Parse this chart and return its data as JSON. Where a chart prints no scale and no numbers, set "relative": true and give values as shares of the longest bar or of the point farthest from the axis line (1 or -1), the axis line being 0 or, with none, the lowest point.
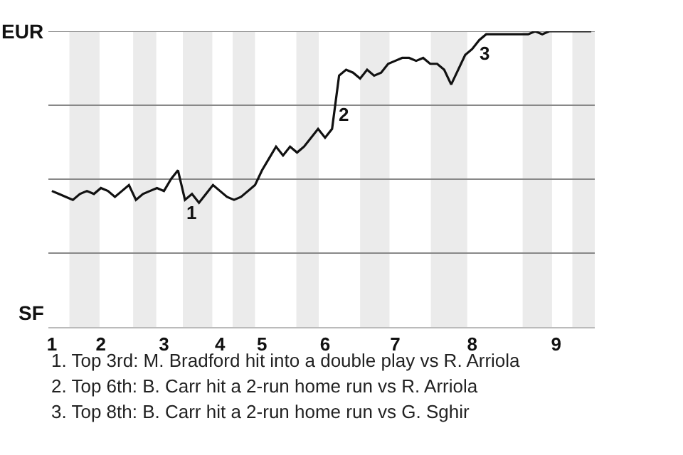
{
  "chart_data": {
    "type": "line",
    "relative": true,
    "categories": [
      "1",
      null,
      null,
      null,
      null,
      null,
      null,
      "2",
      null,
      null,
      null,
      null,
      null,
      null,
      null,
      null,
      "3",
      null,
      null,
      null,
      null,
      null,
      null,
      null,
      "4",
      null,
      null,
      null,
      null,
      null,
      "5",
      null,
      null,
      null,
      null,
      null,
      null,
      null,
      null,
      "6",
      null,
      null,
      null,
      null,
      null,
      null,
      null,
      null,
      null,
      "7",
      null,
      null,
      null,
      null,
      null,
      null,
      null,
      null,
      null,
      null,
      "8",
      null,
      null,
      null,
      null,
      null,
      null,
      null,
      null,
      null,
      null,
      null,
      "9",
      null,
      null,
      null,
      null,
      null
    ],
    "series": [
      {
        "color": "#111111",
        "values": [
          0.46,
          0.45,
          0.44,
          0.43,
          0.45,
          0.46,
          0.45,
          0.47,
          0.46,
          0.44,
          0.46,
          0.48,
          0.43,
          0.45,
          0.46,
          0.47,
          0.46,
          0.5,
          0.53,
          0.43,
          0.45,
          0.42,
          0.45,
          0.48,
          0.46,
          0.44,
          0.43,
          0.44,
          0.46,
          0.48,
          0.53,
          0.57,
          0.61,
          0.58,
          0.61,
          0.59,
          0.61,
          0.64,
          0.67,
          0.64,
          0.67,
          0.85,
          0.87,
          0.86,
          0.84,
          0.87,
          0.85,
          0.86,
          0.89,
          0.9,
          0.91,
          0.91,
          0.9,
          0.91,
          0.89,
          0.89,
          0.87,
          0.82,
          0.87,
          0.92,
          0.94,
          0.97,
          0.99,
          0.99,
          0.99,
          0.99,
          0.99,
          0.99,
          0.99,
          1.0,
          0.99,
          1.0,
          1.0,
          1.0,
          1.0,
          1.0,
          1.0,
          1.0
        ]
      }
    ],
    "marker": "none",
    "line_style": "solid",
    "ref_lines": [
      {
        "axis": "y",
        "value": 0.25,
        "color": "#888888"
      },
      {
        "axis": "y",
        "value": 0.5,
        "color": "#888888"
      },
      {
        "axis": "y",
        "value": 0.75,
        "color": "#888888"
      },
      {
        "axis": "y",
        "value": 1,
        "color": "#888888"
      }
    ],
    "annotations": [
      "EUR",
      "SF",
      "1",
      "2",
      "3",
      "1. Top 3rd: M. Bradford hit into a double play vs R. Arriola",
      "2. Top 6th: B. Carr hit a 2-run home run vs R. Arriola",
      "3. Top 8th: B. Carr hit a 2-run home run vs G. Sghir"
    ]
  }
}
